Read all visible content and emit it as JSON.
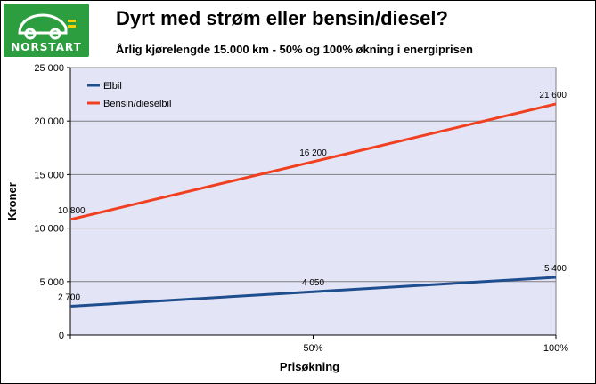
{
  "header": {
    "title": "Dyrt med strøm eller bensin/diesel?",
    "subtitle": "Årlig kjørelengde 15.000 km - 50% og 100% økning i energiprisen",
    "logo_text": "NORSTART"
  },
  "colors": {
    "plot_bg": "#e4e4f7",
    "grid": "#7f7f7f",
    "elbil": "#1f4e8f",
    "bensin": "#f04020",
    "logo_bg": "#2d9e3f",
    "logo_accent": "#f4d000"
  },
  "chart_data": {
    "type": "line",
    "xlabel": "Prisøkning",
    "ylabel": "Kroner",
    "x": [
      "",
      "50%",
      "100%"
    ],
    "ylim": [
      0,
      25000
    ],
    "yticks": [
      "0",
      "5 000",
      "10 000",
      "15 000",
      "20 000",
      "25 000"
    ],
    "grid": true,
    "legend_position": "top-left",
    "series": [
      {
        "name": "Elbil",
        "color": "#1f4e8f",
        "values": [
          2700,
          4050,
          5400
        ],
        "labels": [
          "2 700",
          "4 050",
          "5 400"
        ]
      },
      {
        "name": "Bensin/dieselbil",
        "color": "#f04020",
        "values": [
          10800,
          16200,
          21600
        ],
        "labels": [
          "10 800",
          "16 200",
          "21 600"
        ]
      }
    ]
  }
}
